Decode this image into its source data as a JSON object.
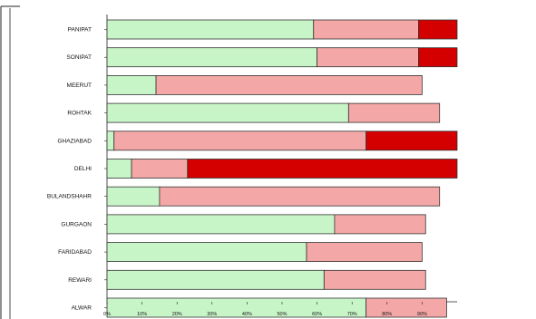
{
  "chart_data": {
    "type": "bar",
    "orientation": "horizontal",
    "stacked": true,
    "title": "",
    "xlabel": "",
    "ylabel": "",
    "xlim": [
      0,
      100
    ],
    "grid": false,
    "legend": "none",
    "categories": [
      "PANIPAT",
      "SONIPAT",
      "MEERUT",
      "ROHTAK",
      "GHAZIABAD",
      "DELHI",
      "BULANDSHAHR",
      "GURGAON",
      "FARIDABAD",
      "REWARI",
      "ALWAR"
    ],
    "series": [
      {
        "color": "#c8f5c8",
        "values": [
          59,
          60,
          14,
          69,
          2,
          7,
          15,
          65,
          57,
          62,
          74
        ]
      },
      {
        "color": "#f4a7a7",
        "values": [
          30,
          29,
          76,
          26,
          72,
          16,
          80,
          26,
          33,
          29,
          23
        ]
      },
      {
        "color": "#d40000",
        "values": [
          11,
          11,
          0,
          0,
          26,
          77,
          0,
          0,
          0,
          0,
          0
        ]
      }
    ],
    "x_ticks": [
      "0%",
      "10%",
      "20%",
      "30%",
      "40%",
      "50%",
      "60%",
      "70%",
      "80%",
      "90%"
    ]
  }
}
